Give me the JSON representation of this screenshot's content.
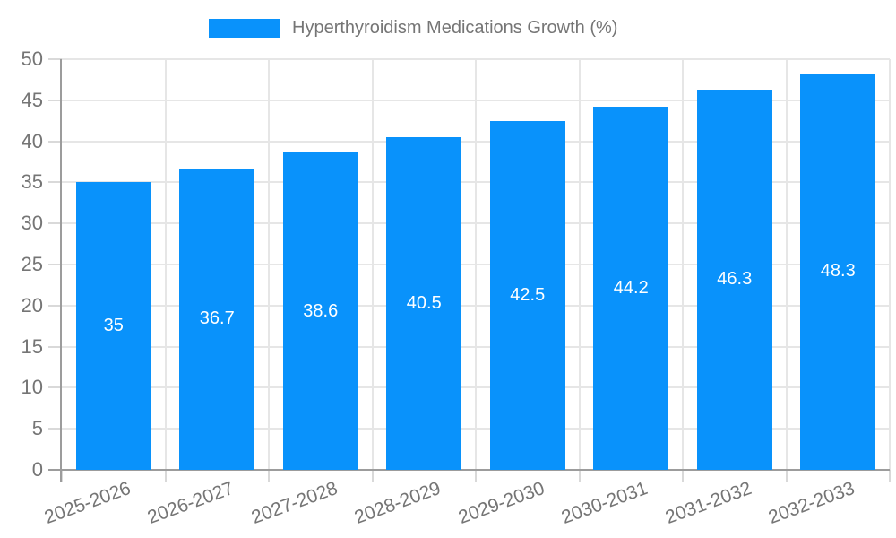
{
  "legend": {
    "label": "Hyperthyroidism Medications Growth (%)"
  },
  "chart_data": {
    "type": "bar",
    "title": "Hyperthyroidism Medications Growth (%)",
    "categories": [
      "2025-2026",
      "2026-2027",
      "2027-2028",
      "2028-2029",
      "2029-2030",
      "2030-2031",
      "2031-2032",
      "2032-2033"
    ],
    "values": [
      35,
      36.7,
      38.6,
      40.5,
      42.5,
      44.2,
      46.3,
      48.3
    ],
    "bar_labels": [
      "35",
      "36.7",
      "38.6",
      "40.5",
      "42.5",
      "44.2",
      "46.3",
      "48.3"
    ],
    "xlabel": "",
    "ylabel": "",
    "ylim": [
      0,
      50
    ],
    "ytick_step": 5,
    "ytick_labels": [
      "0",
      "5",
      "10",
      "15",
      "20",
      "25",
      "30",
      "35",
      "40",
      "45",
      "50"
    ],
    "grid": true,
    "legend_position": "top",
    "colors": {
      "bar": "#0992fb",
      "bar_label_text": "#ffffff",
      "axis_text": "#757575",
      "axis_line": "#9c9c9c",
      "gridline": "#e6e6e6",
      "tick": "#d9d9d9",
      "background": "#ffffff"
    }
  }
}
